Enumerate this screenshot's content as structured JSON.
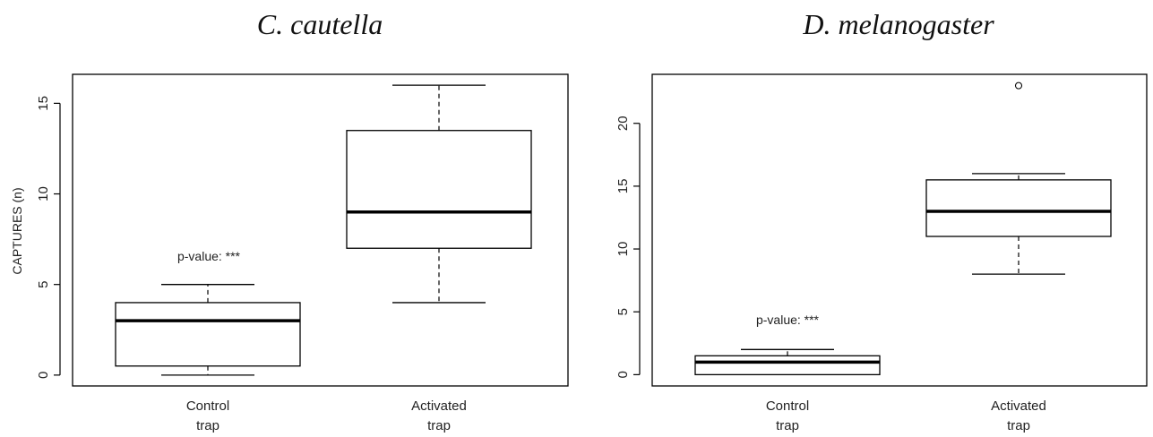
{
  "chart_data": [
    {
      "type": "box",
      "title": "C. cautella",
      "ylabel": "CAPTURES (n)",
      "xlabel": "",
      "ylim": [
        -0.6,
        16.6
      ],
      "yticks": [
        0,
        5,
        10,
        15
      ],
      "grid": false,
      "annotation": "p-value: ***",
      "categories": [
        {
          "line1": "Control",
          "line2": "trap"
        },
        {
          "line1": "Activated",
          "line2": "trap"
        }
      ],
      "boxes": [
        {
          "min": 0,
          "q1": 0.5,
          "median": 3,
          "q3": 4,
          "max": 5,
          "outliers": []
        },
        {
          "min": 4,
          "q1": 7,
          "median": 9,
          "q3": 13.5,
          "max": 16,
          "outliers": []
        }
      ]
    },
    {
      "type": "box",
      "title": "D. melanogaster",
      "ylabel": "",
      "xlabel": "",
      "ylim": [
        -0.9,
        23.9
      ],
      "yticks": [
        0,
        5,
        10,
        15,
        20
      ],
      "grid": false,
      "annotation": "p-value: ***",
      "categories": [
        {
          "line1": "Control",
          "line2": "trap"
        },
        {
          "line1": "Activated",
          "line2": "trap"
        }
      ],
      "boxes": [
        {
          "min": 0,
          "q1": 0,
          "median": 1,
          "q3": 1.5,
          "max": 2,
          "outliers": []
        },
        {
          "min": 8,
          "q1": 11,
          "median": 13,
          "q3": 15.5,
          "max": 16,
          "outliers": [
            23
          ]
        }
      ]
    }
  ]
}
